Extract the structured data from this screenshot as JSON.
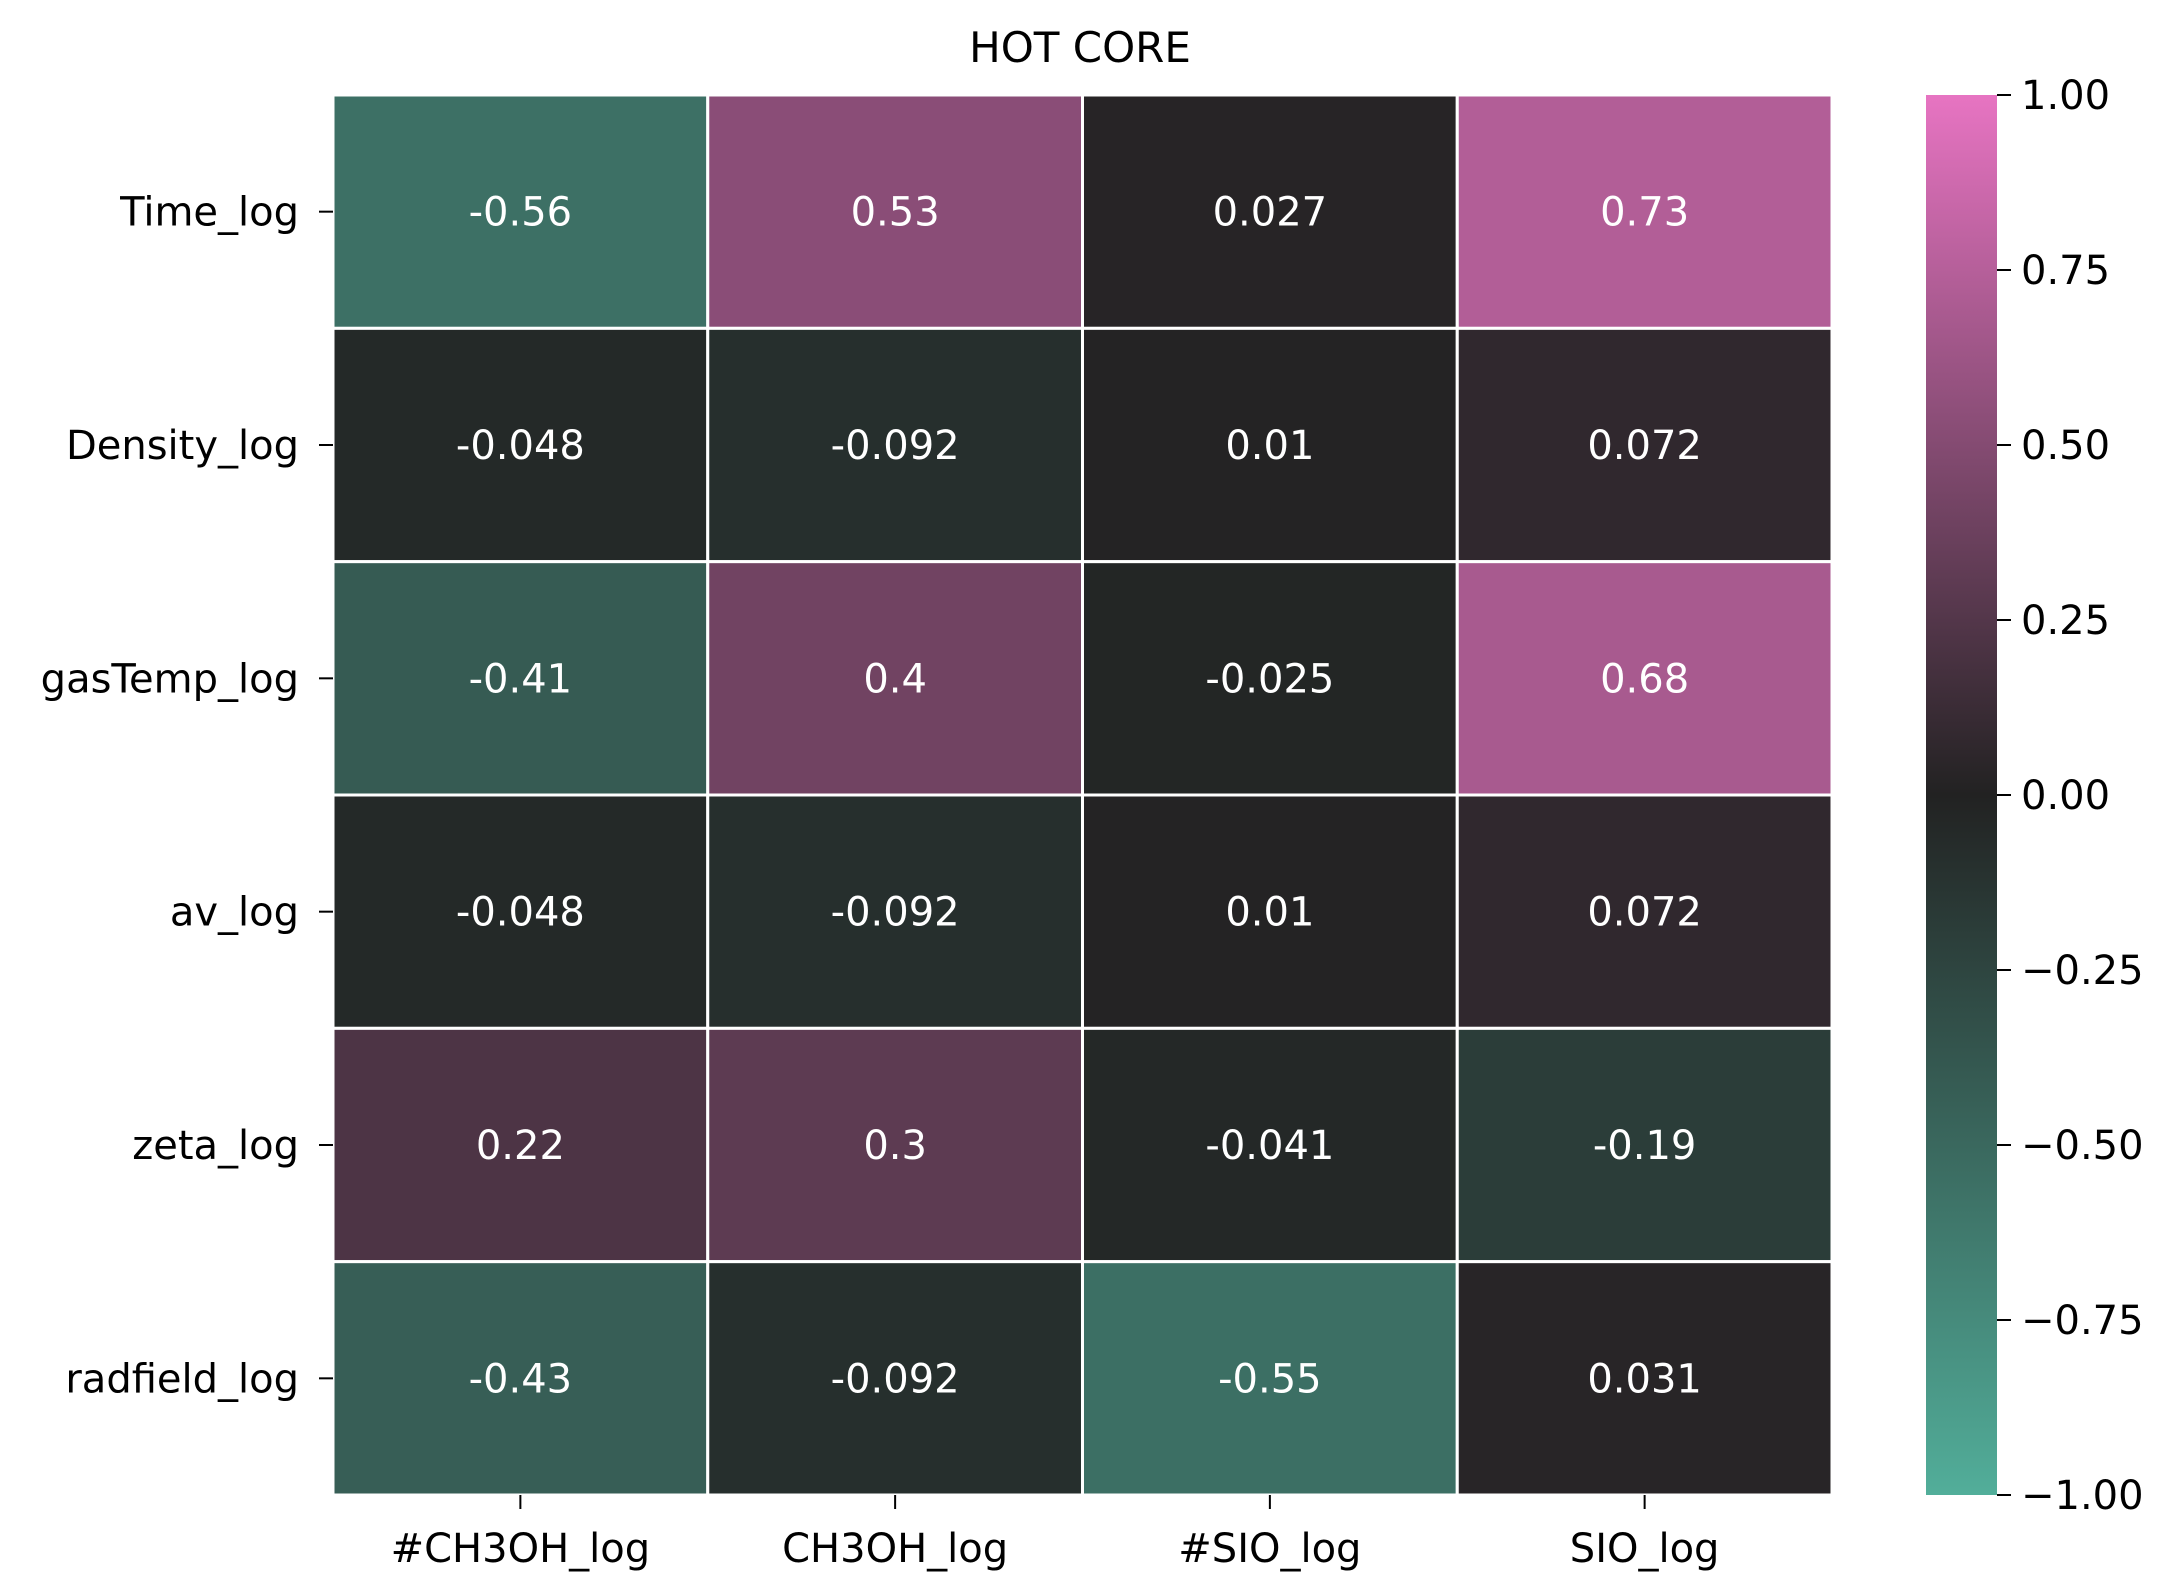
{
  "chart_data": {
    "type": "heatmap",
    "title": "HOT CORE",
    "xlabel": "",
    "ylabel": "",
    "columns": [
      "#CH3OH_log",
      "CH3OH_log",
      "#SIO_log",
      "SIO_log"
    ],
    "rows": [
      "Time_log",
      "Density_log",
      "gasTemp_log",
      "av_log",
      "zeta_log",
      "radfield_log"
    ],
    "values": [
      [
        -0.56,
        0.53,
        0.027,
        0.73
      ],
      [
        -0.048,
        -0.092,
        0.01,
        0.072
      ],
      [
        -0.41,
        0.4,
        -0.025,
        0.68
      ],
      [
        -0.048,
        -0.092,
        0.01,
        0.072
      ],
      [
        0.22,
        0.3,
        -0.041,
        -0.19
      ],
      [
        -0.43,
        -0.092,
        -0.55,
        0.031
      ]
    ],
    "value_labels": [
      [
        "-0.56",
        "0.53",
        "0.027",
        "0.73"
      ],
      [
        "-0.048",
        "-0.092",
        "0.01",
        "0.072"
      ],
      [
        "-0.41",
        "0.4",
        "-0.025",
        "0.68"
      ],
      [
        "-0.048",
        "-0.092",
        "0.01",
        "0.072"
      ],
      [
        "0.22",
        "0.3",
        "-0.041",
        "-0.19"
      ],
      [
        "-0.43",
        "-0.092",
        "-0.55",
        "0.031"
      ]
    ],
    "colorbar": {
      "range": [
        -1.0,
        1.0
      ],
      "ticks": [
        1.0,
        0.75,
        0.5,
        0.25,
        0.0,
        -0.25,
        -0.5,
        -0.75,
        -1.0
      ],
      "tick_labels": [
        "1.00",
        "0.75",
        "0.50",
        "0.25",
        "0.00",
        "−0.25",
        "−0.50",
        "−0.75",
        "−1.00"
      ],
      "colors": {
        "low": "#52ae9a",
        "mid": "#222222",
        "high": "#e774c2"
      }
    },
    "legend": "colorbar-right",
    "grid": false
  }
}
